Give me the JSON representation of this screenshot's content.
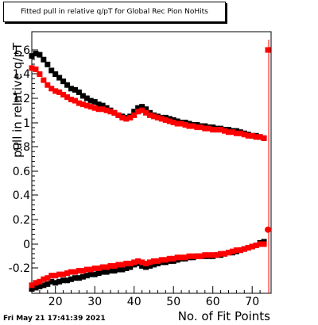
{
  "chart_data": {
    "type": "scatter",
    "title": "Fitted pull in relative q/pT for Global Rec Pion NoHits",
    "xlabel": "No. of Fit Points",
    "ylabel": "pull in relative q/pT",
    "x_ticks": [
      "20",
      "30",
      "40",
      "50",
      "60",
      "70"
    ],
    "y_ticks": [
      "-0.2",
      "0",
      "0.2",
      "0.4",
      "0.6",
      "0.8",
      "1",
      "1.2",
      "1.4",
      "1.6"
    ],
    "xlim": [
      14,
      74
    ],
    "series": [
      {
        "color": "#000000",
        "marker": "square",
        "x": [
          14,
          15,
          16,
          17,
          18,
          19,
          20,
          21,
          22,
          23,
          24,
          25,
          26,
          27,
          28,
          29,
          30,
          31,
          32,
          33,
          34,
          35,
          36,
          37,
          38,
          39,
          40,
          41,
          42,
          43,
          44,
          45,
          46,
          47,
          48,
          49,
          50,
          51,
          52,
          53,
          54,
          55,
          56,
          57,
          58,
          59,
          60,
          61,
          62,
          63,
          64,
          65,
          66,
          67,
          68,
          69,
          70,
          71,
          72,
          73
        ],
        "y": [
          1.55,
          1.57,
          1.56,
          1.52,
          1.48,
          1.43,
          1.4,
          1.37,
          1.34,
          1.31,
          1.28,
          1.27,
          1.25,
          1.22,
          1.2,
          1.18,
          1.17,
          1.15,
          1.14,
          1.12,
          1.1,
          1.08,
          1.06,
          1.05,
          1.04,
          1.05,
          1.09,
          1.12,
          1.13,
          1.11,
          1.08,
          1.06,
          1.05,
          1.04,
          1.04,
          1.03,
          1.02,
          1.01,
          1.0,
          1.0,
          0.99,
          0.98,
          0.98,
          0.97,
          0.97,
          0.96,
          0.96,
          0.95,
          0.95,
          0.94,
          0.94,
          0.93,
          0.93,
          0.92,
          0.91,
          0.9,
          0.89,
          0.89,
          0.88,
          0.87
        ]
      },
      {
        "color": "#ff0000",
        "marker": "square",
        "x": [
          14,
          15,
          16,
          17,
          18,
          19,
          20,
          21,
          22,
          23,
          24,
          25,
          26,
          27,
          28,
          29,
          30,
          31,
          32,
          33,
          34,
          35,
          36,
          37,
          38,
          39,
          40,
          41,
          42,
          43,
          44,
          45,
          46,
          47,
          48,
          49,
          50,
          51,
          52,
          53,
          54,
          55,
          56,
          57,
          58,
          59,
          60,
          61,
          62,
          63,
          64,
          65,
          66,
          67,
          68,
          69,
          70,
          71,
          72,
          73
        ],
        "y": [
          1.45,
          1.44,
          1.4,
          1.35,
          1.31,
          1.28,
          1.26,
          1.25,
          1.23,
          1.21,
          1.19,
          1.18,
          1.16,
          1.15,
          1.14,
          1.13,
          1.12,
          1.11,
          1.11,
          1.1,
          1.09,
          1.08,
          1.06,
          1.04,
          1.03,
          1.04,
          1.06,
          1.09,
          1.1,
          1.08,
          1.06,
          1.05,
          1.04,
          1.03,
          1.02,
          1.01,
          1.0,
          0.99,
          0.99,
          0.98,
          0.97,
          0.97,
          0.96,
          0.96,
          0.95,
          0.95,
          0.94,
          0.94,
          0.94,
          0.93,
          0.92,
          0.92,
          0.91,
          0.91,
          0.9,
          0.89,
          0.89,
          0.88,
          0.88,
          0.87
        ]
      },
      {
        "color": "#000000",
        "marker": "square",
        "x": [
          14,
          15,
          16,
          17,
          18,
          19,
          20,
          21,
          22,
          23,
          24,
          25,
          26,
          27,
          28,
          29,
          30,
          31,
          32,
          33,
          34,
          35,
          36,
          37,
          38,
          39,
          40,
          41,
          42,
          43,
          44,
          45,
          46,
          47,
          48,
          49,
          50,
          51,
          52,
          53,
          54,
          55,
          56,
          57,
          58,
          59,
          60,
          61,
          62,
          63,
          64,
          65,
          66,
          67,
          68,
          69,
          70,
          71,
          72,
          73
        ],
        "y": [
          -0.37,
          -0.36,
          -0.35,
          -0.34,
          -0.33,
          -0.31,
          -0.32,
          -0.31,
          -0.3,
          -0.3,
          -0.29,
          -0.28,
          -0.28,
          -0.27,
          -0.26,
          -0.25,
          -0.25,
          -0.24,
          -0.23,
          -0.23,
          -0.22,
          -0.22,
          -0.21,
          -0.21,
          -0.2,
          -0.19,
          -0.17,
          -0.16,
          -0.18,
          -0.19,
          -0.18,
          -0.17,
          -0.16,
          -0.15,
          -0.15,
          -0.14,
          -0.14,
          -0.13,
          -0.12,
          -0.12,
          -0.11,
          -0.11,
          -0.1,
          -0.1,
          -0.1,
          -0.1,
          -0.1,
          -0.09,
          -0.09,
          -0.08,
          -0.07,
          -0.07,
          -0.06,
          -0.05,
          -0.04,
          -0.03,
          -0.02,
          -0.01,
          0.01,
          0.02
        ]
      },
      {
        "color": "#ff0000",
        "marker": "square",
        "x": [
          14,
          15,
          16,
          17,
          18,
          19,
          20,
          21,
          22,
          23,
          24,
          25,
          26,
          27,
          28,
          29,
          30,
          31,
          32,
          33,
          34,
          35,
          36,
          37,
          38,
          39,
          40,
          41,
          42,
          43,
          44,
          45,
          46,
          47,
          48,
          49,
          50,
          51,
          52,
          53,
          54,
          55,
          56,
          57,
          58,
          59,
          60,
          61,
          62,
          63,
          64,
          65,
          66,
          67,
          68,
          69,
          70,
          71,
          72,
          73
        ],
        "y": [
          -0.34,
          -0.32,
          -0.31,
          -0.29,
          -0.28,
          -0.26,
          -0.26,
          -0.25,
          -0.25,
          -0.24,
          -0.23,
          -0.23,
          -0.22,
          -0.22,
          -0.21,
          -0.21,
          -0.2,
          -0.2,
          -0.19,
          -0.19,
          -0.18,
          -0.18,
          -0.17,
          -0.17,
          -0.16,
          -0.16,
          -0.15,
          -0.14,
          -0.15,
          -0.16,
          -0.15,
          -0.14,
          -0.14,
          -0.13,
          -0.13,
          -0.12,
          -0.12,
          -0.11,
          -0.11,
          -0.11,
          -0.1,
          -0.1,
          -0.1,
          -0.1,
          -0.09,
          -0.09,
          -0.09,
          -0.09,
          -0.08,
          -0.08,
          -0.07,
          -0.06,
          -0.05,
          -0.05,
          -0.04,
          -0.03,
          -0.02,
          -0.01,
          0.0,
          0.0
        ]
      },
      {
        "color": "#ff0000",
        "marker": "circle",
        "x": [
          74
        ],
        "y": [
          0.12
        ]
      },
      {
        "color": "#ff0000",
        "marker": "square",
        "x": [
          74
        ],
        "y": [
          1.6
        ]
      }
    ]
  },
  "footer": {
    "datestamp": "Fri May 21 17:41:39 2021"
  }
}
